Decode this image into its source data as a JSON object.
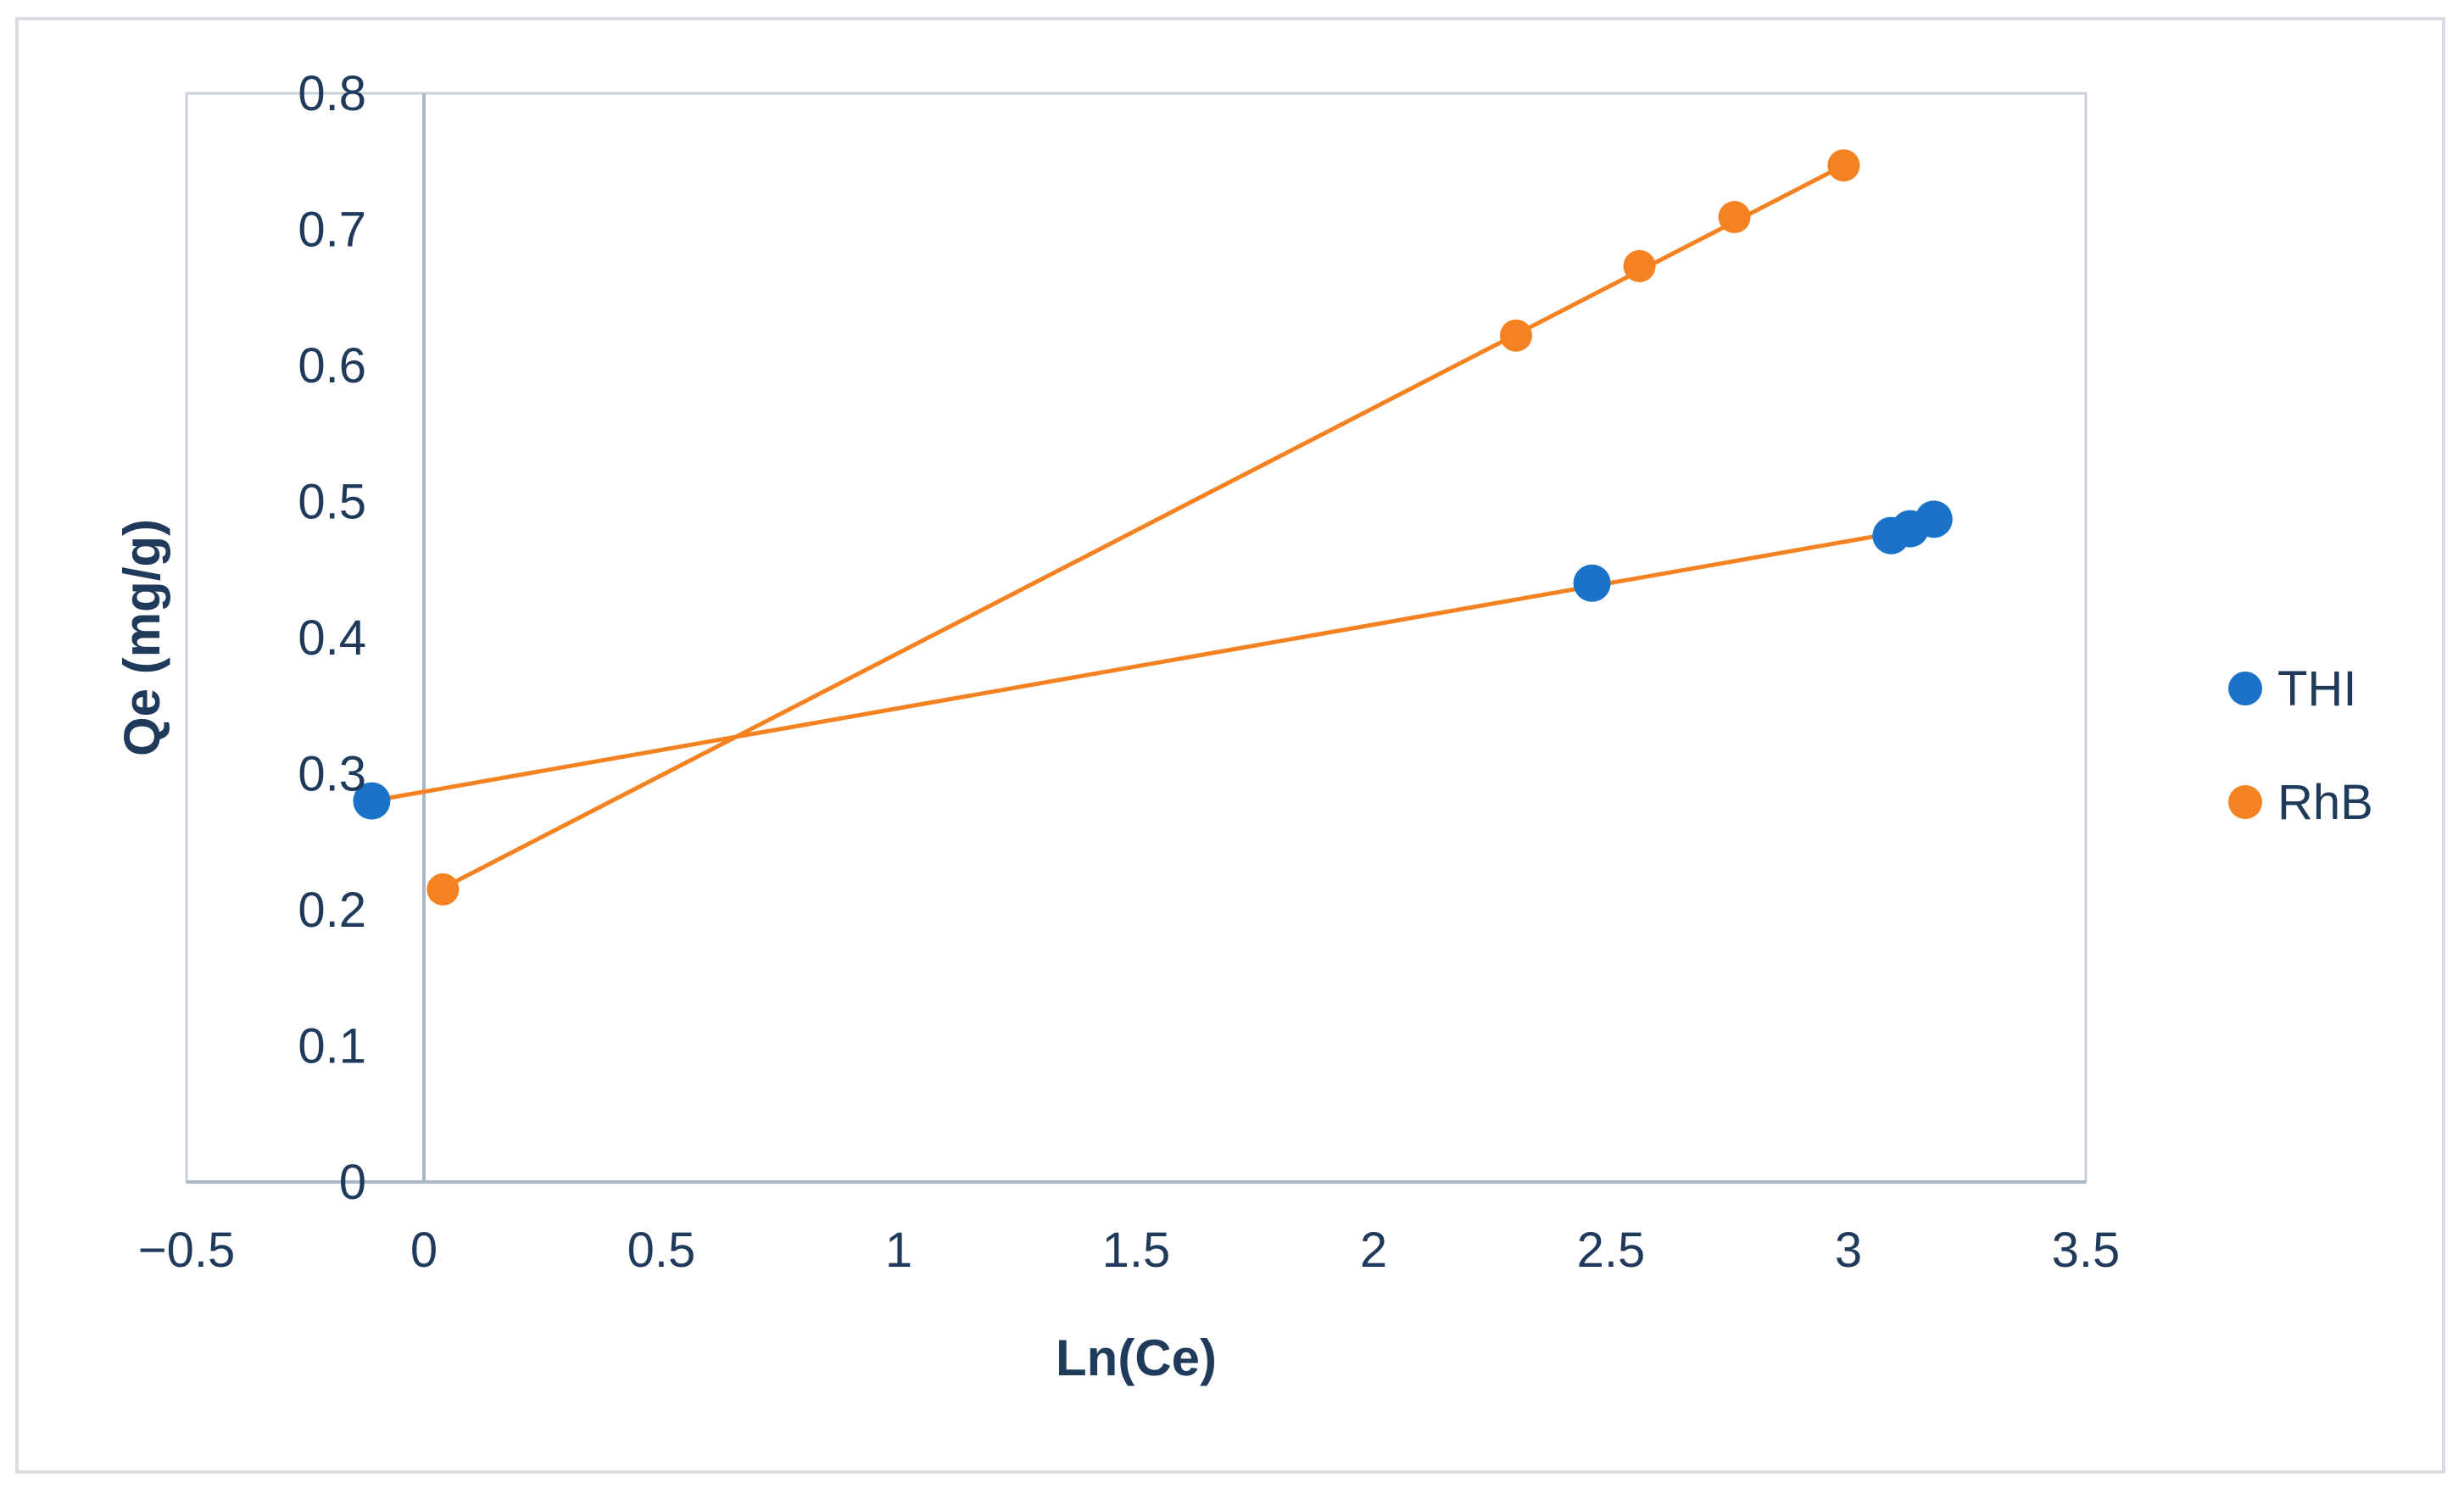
{
  "chart_data": {
    "type": "scatter",
    "title": "",
    "xlabel": "Ln(Ce)",
    "ylabel": "Qe (mg/g)",
    "xlim": [
      -0.5,
      3.5
    ],
    "ylim": [
      0,
      0.8
    ],
    "x_ticks": [
      "−0.5",
      "0",
      "0.5",
      "1",
      "1.5",
      "2",
      "2.5",
      "3",
      "3.5"
    ],
    "x_tick_values": [
      -0.5,
      0,
      0.5,
      1,
      1.5,
      2,
      2.5,
      3,
      3.5
    ],
    "y_ticks": [
      "0",
      "0.1",
      "0.2",
      "0.3",
      "0.4",
      "0.5",
      "0.6",
      "0.7",
      "0.8"
    ],
    "y_tick_values": [
      0,
      0.1,
      0.2,
      0.3,
      0.4,
      0.5,
      0.6,
      0.7,
      0.8
    ],
    "grid": false,
    "legend_position": "right",
    "series": [
      {
        "name": "THI",
        "color": "#1a73c8",
        "points": [
          [
            -0.11,
            0.28
          ],
          [
            2.46,
            0.44
          ],
          [
            3.09,
            0.475
          ],
          [
            3.13,
            0.48
          ],
          [
            3.18,
            0.487
          ]
        ],
        "trendline": [
          [
            -0.11,
            0.28
          ],
          [
            3.18,
            0.482
          ]
        ]
      },
      {
        "name": "RhB",
        "color": "#f58220",
        "points": [
          [
            0.04,
            0.215
          ],
          [
            2.3,
            0.622
          ],
          [
            2.56,
            0.673
          ],
          [
            2.76,
            0.709
          ],
          [
            2.99,
            0.747
          ]
        ],
        "trendline": [
          [
            0.04,
            0.216
          ],
          [
            2.99,
            0.747
          ]
        ]
      }
    ]
  }
}
